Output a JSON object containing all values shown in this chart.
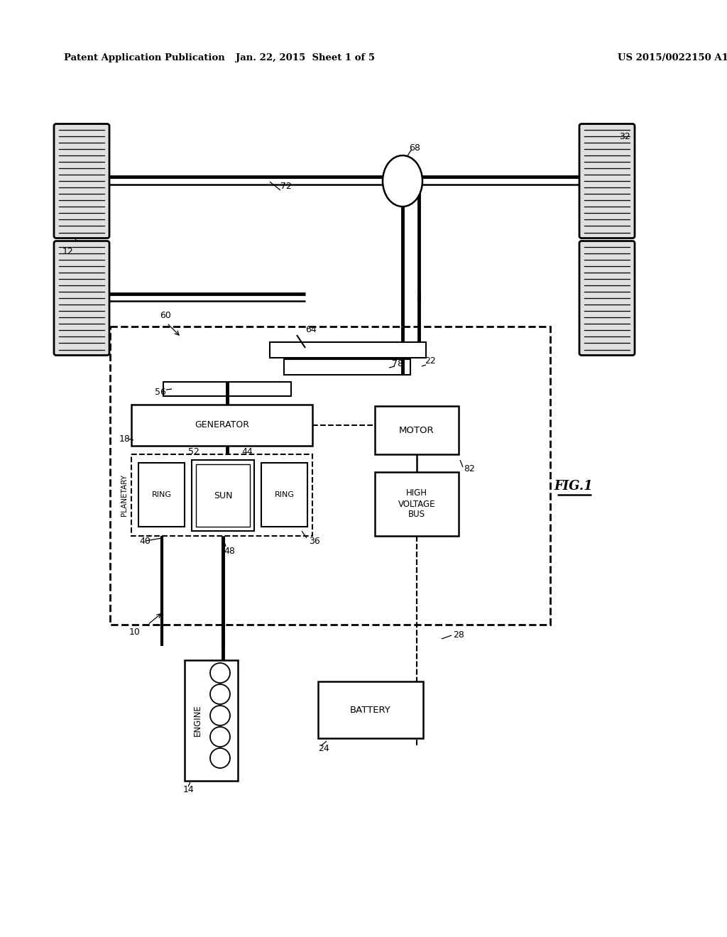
{
  "bg": "#ffffff",
  "lc": "#000000",
  "header_left": "Patent Application Publication",
  "header_center": "Jan. 22, 2015  Sheet 1 of 5",
  "header_right": "US 2015/0022150 A1"
}
